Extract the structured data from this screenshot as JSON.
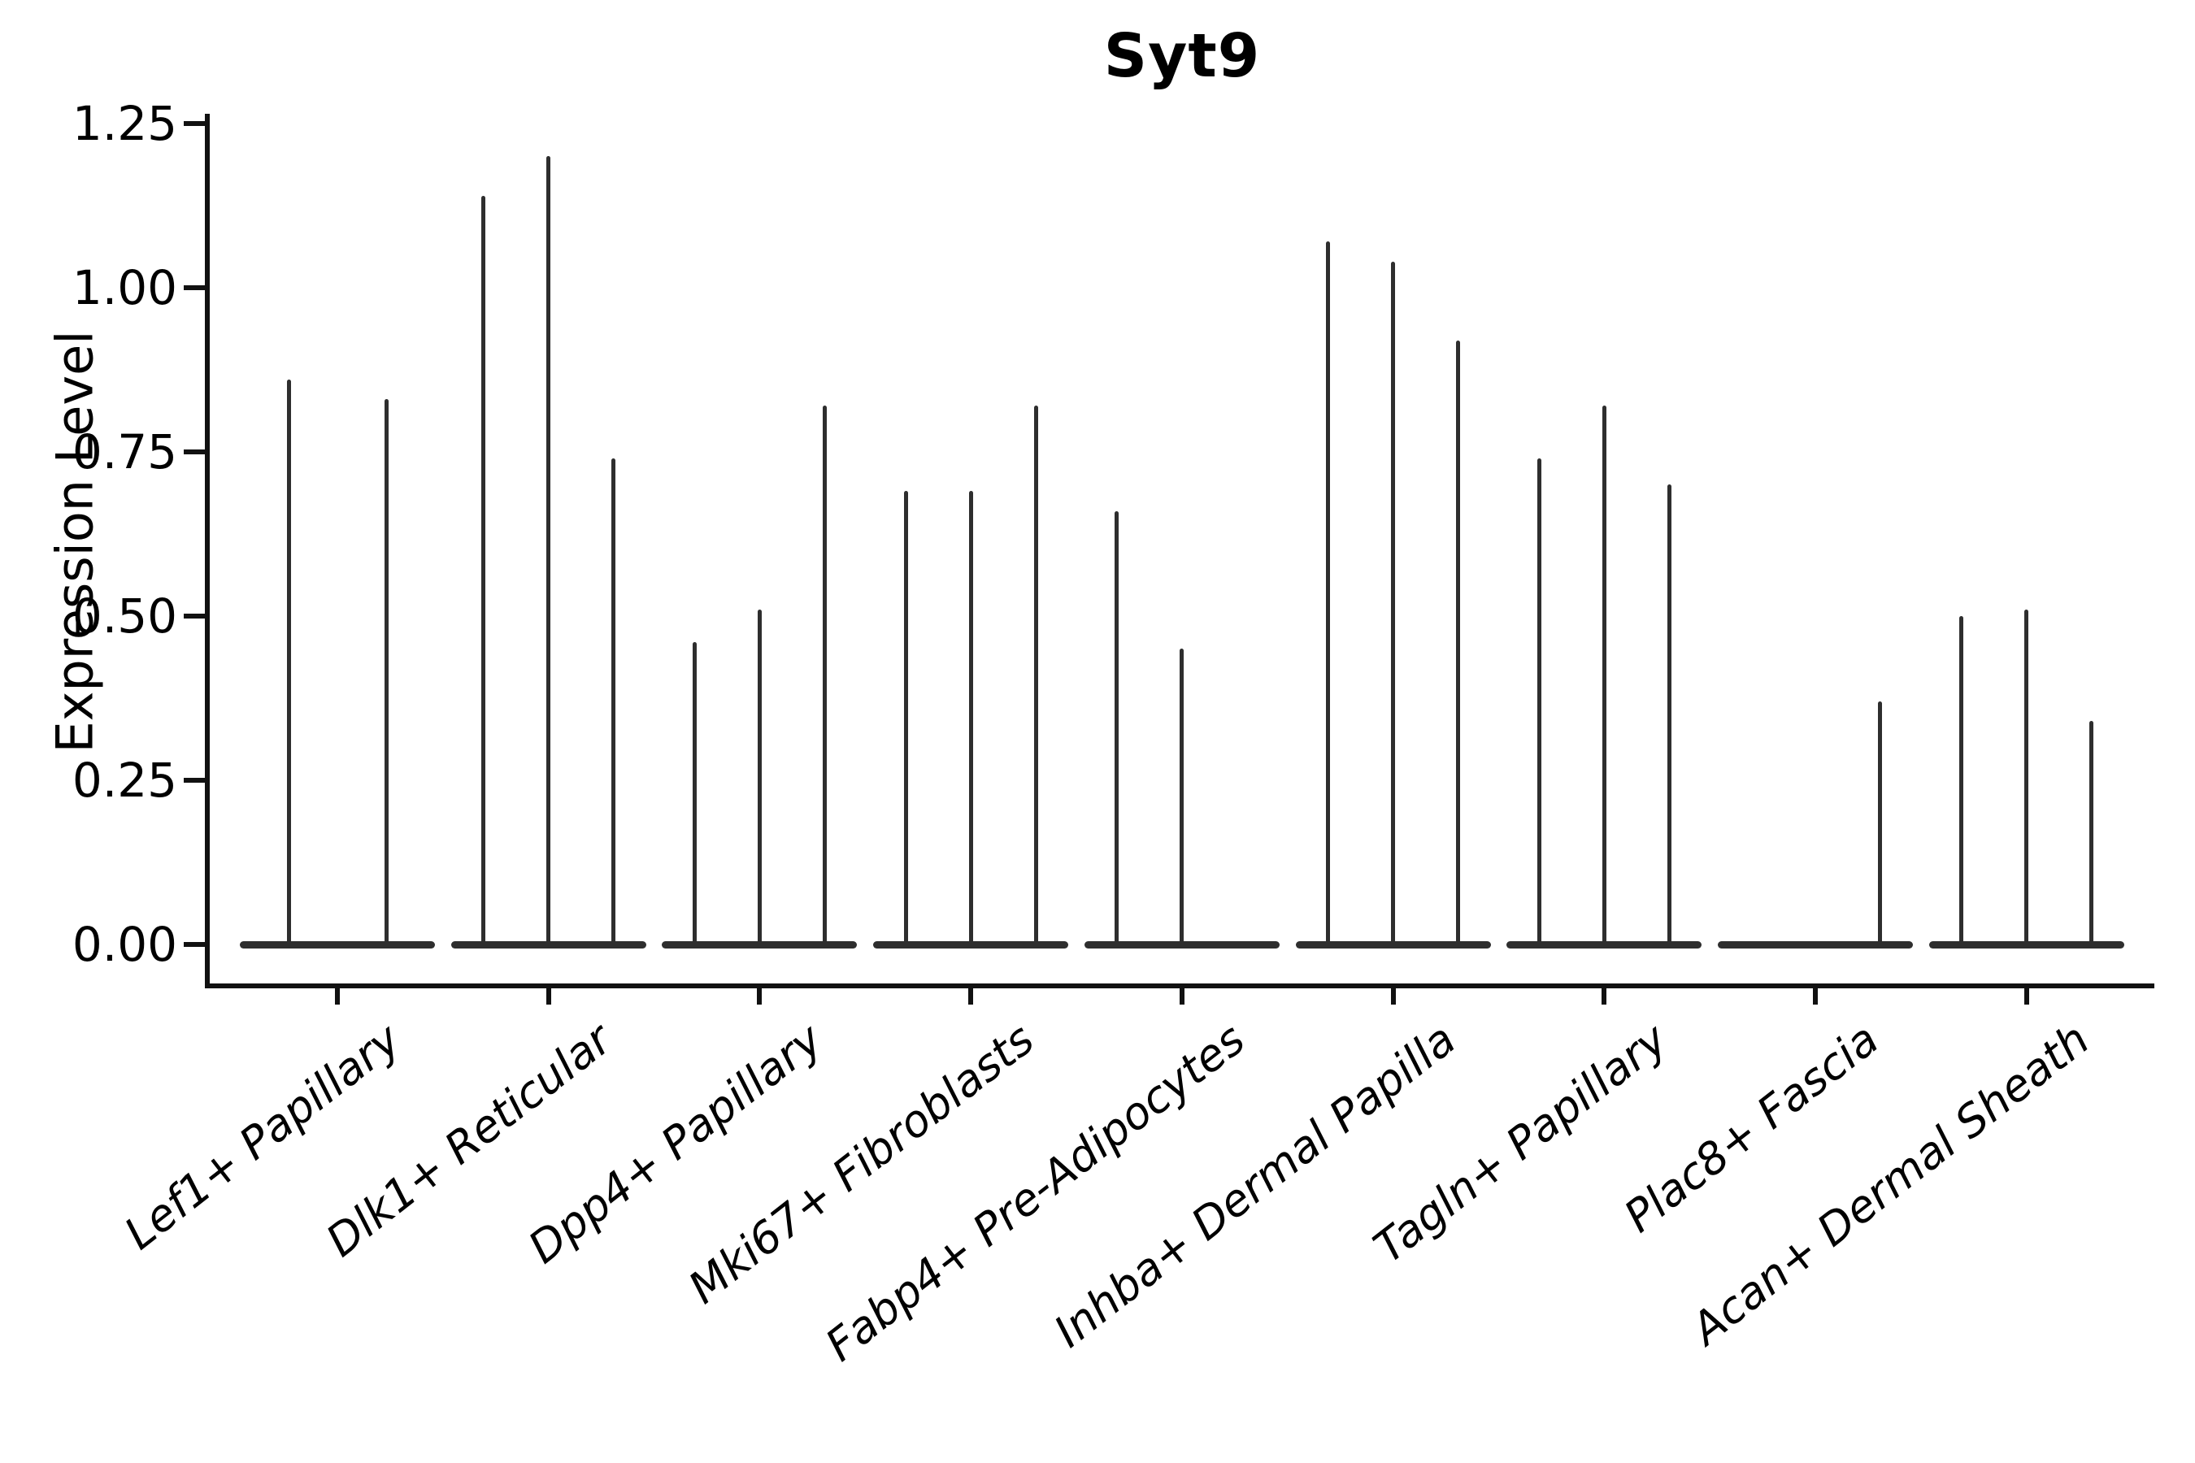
{
  "figure": {
    "title": "Syt9",
    "y_axis_label": "Expression Level",
    "colors": {
      "violin": "#2e2e2e",
      "axis": "#111111",
      "text": "#000000",
      "background": "#ffffff"
    }
  },
  "chart_data": {
    "type": "violin",
    "title": "Syt9",
    "xlabel": "",
    "ylabel": "Expression Level",
    "ylim": [
      0,
      1.25
    ],
    "yticks": [
      {
        "value": 0.0,
        "label": "0.00"
      },
      {
        "value": 0.25,
        "label": "0.25"
      },
      {
        "value": 0.5,
        "label": "0.50"
      },
      {
        "value": 0.75,
        "label": "0.75"
      },
      {
        "value": 1.0,
        "label": "1.00"
      },
      {
        "value": 1.25,
        "label": "1.25"
      }
    ],
    "grid": false,
    "legend": "none",
    "note": "Each category shows collapsed (near-zero-width) violins as vertical spikes rising from a flat base at 0; values are the maximum expression per violin; 0 = fully flat violin",
    "groups": [
      {
        "label": "Lef1+ Papillary",
        "violin_max_values": [
          0.86,
          0.83
        ]
      },
      {
        "label": "Dlk1+ Reticular",
        "violin_max_values": [
          1.14,
          1.2,
          0.74
        ]
      },
      {
        "label": "Dpp4+ Papillary",
        "violin_max_values": [
          0.46,
          0.51,
          0.82
        ]
      },
      {
        "label": "Mki67+ Fibroblasts",
        "violin_max_values": [
          0.69,
          0.69,
          0.82
        ]
      },
      {
        "label": "Fabp4+ Pre-Adipocytes",
        "violin_max_values": [
          0.66,
          0.45,
          0.0
        ]
      },
      {
        "label": "Inhba+ Dermal Papilla",
        "violin_max_values": [
          1.07,
          1.04,
          0.92
        ]
      },
      {
        "label": "Tagln+ Papillary",
        "violin_max_values": [
          0.74,
          0.82,
          0.7
        ]
      },
      {
        "label": "Plac8+ Fascia",
        "violin_max_values": [
          0.0,
          0.0,
          0.37
        ]
      },
      {
        "label": "Acan+ Dermal Sheath",
        "violin_max_values": [
          0.5,
          0.51,
          0.34
        ]
      }
    ]
  }
}
